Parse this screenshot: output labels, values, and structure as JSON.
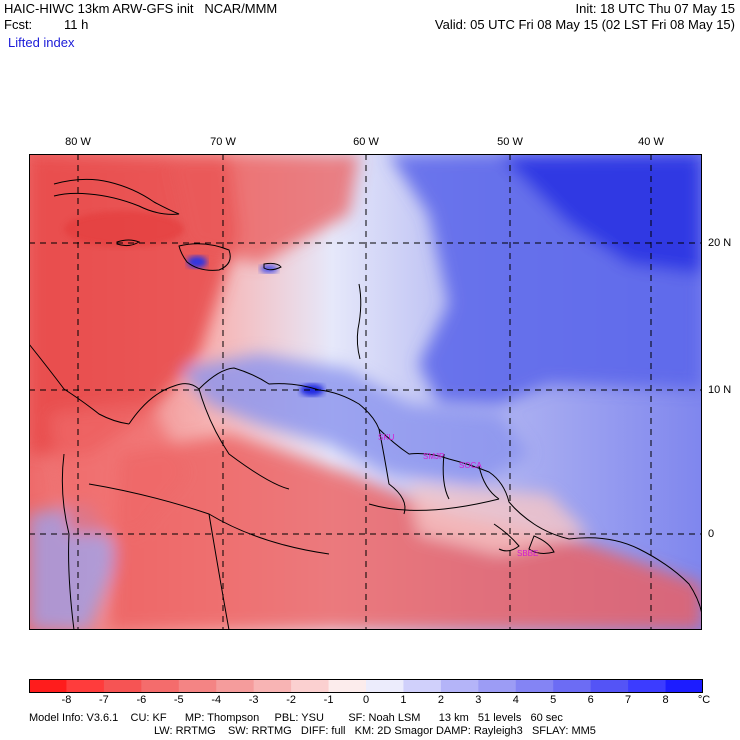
{
  "header": {
    "model_line": "HAIC-HIWC 13km ARW-GFS init   NCAR/MMM",
    "forecast_label": "Fcst:",
    "forecast_hours": "11 h",
    "field_name": "Lifted index",
    "init_line": "Init: 18 UTC Thu 07 May 15",
    "valid_line": "Valid: 05 UTC Fri 08 May 15 (02 LST Fri 08 May 15)"
  },
  "map": {
    "longitude_labels": [
      "80 W",
      "70 W",
      "60 W",
      "50 W",
      "40 W"
    ],
    "latitude_labels": [
      "20 N",
      "10 N",
      "0"
    ],
    "station_labels": [
      "SKU",
      "SMJP",
      "SOCA",
      "SBBE"
    ],
    "station_color": "#d21cd2",
    "colors": {
      "negative": "#e8504c",
      "positive": "#3c46e6",
      "neutral": "#f4f2ff",
      "grid": "#000000"
    }
  },
  "colorbar": {
    "labels": [
      "-8",
      "-7",
      "-6",
      "-5",
      "-4",
      "-3",
      "-2",
      "-1",
      "0",
      "1",
      "2",
      "3",
      "4",
      "5",
      "6",
      "7",
      "8"
    ],
    "unit": "°C",
    "colors": [
      "#ff1c1c",
      "#ff3c3c",
      "#f65454",
      "#f46c6c",
      "#f48484",
      "#f59c9c",
      "#f8b4b4",
      "#fbd0d0",
      "#fcecec",
      "#ececfc",
      "#d0d0fb",
      "#b4b4f8",
      "#9c9cf5",
      "#8484f4",
      "#6c6cf4",
      "#5454f6",
      "#3c3cff",
      "#1c1cff"
    ]
  },
  "footer": {
    "line1": "Model Info: V3.6.1    CU: KF      MP: Thompson     PBL: YSU        SF: Noah LSM      13 km   51 levels   60 sec",
    "line2": "LW: RRTMG    SW: RRTMG   DIFF: full   KM: 2D Smagor DAMP: Rayleigh3   SFLAY: MM5"
  }
}
